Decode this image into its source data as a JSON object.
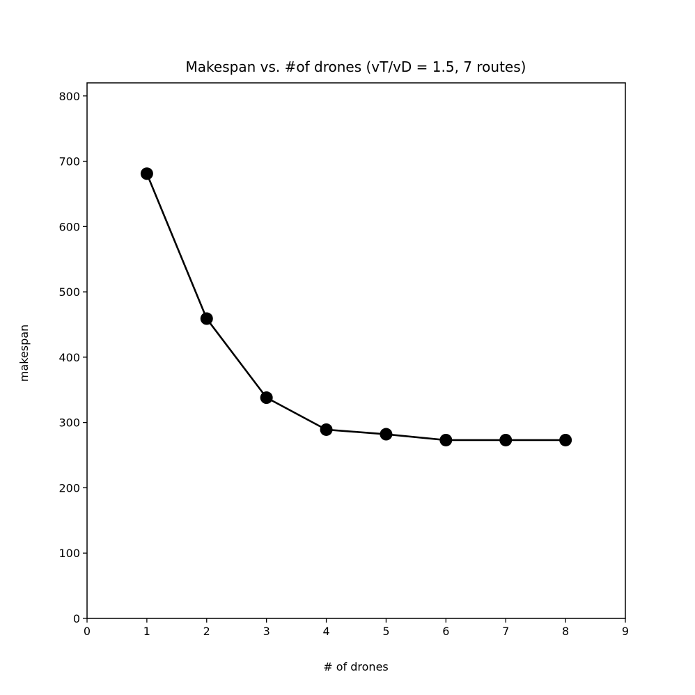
{
  "chart_data": {
    "type": "line",
    "title": "Makespan vs. #of drones (vT/vD = 1.5, 7 routes)",
    "xlabel": "# of drones",
    "ylabel": "makespan",
    "xlim": [
      0,
      9
    ],
    "ylim": [
      0,
      820
    ],
    "x_ticks": [
      0,
      1,
      2,
      3,
      4,
      5,
      6,
      7,
      8,
      9
    ],
    "y_ticks": [
      0,
      100,
      200,
      300,
      400,
      500,
      600,
      700,
      800
    ],
    "grid": false,
    "series": [
      {
        "color": "#000000",
        "marker": "circle",
        "x": [
          1,
          2,
          3,
          4,
          5,
          6,
          7,
          8
        ],
        "y": [
          681,
          459,
          338,
          289,
          282,
          273,
          273,
          273
        ]
      }
    ]
  }
}
